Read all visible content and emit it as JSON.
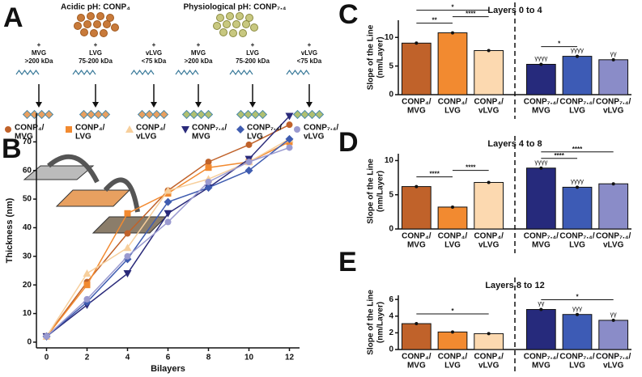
{
  "panel_labels": [
    "A",
    "B",
    "C",
    "D",
    "E"
  ],
  "diagram": {
    "groups": [
      "Acidic pH: CONP₄",
      "Physiological pH: CONP₇.₄"
    ],
    "additions": [
      [
        "+",
        "MVG",
        ">200 kDa"
      ],
      [
        "+",
        "LVG",
        "75-200 kDa"
      ],
      [
        "+",
        "vLVG",
        "<75 kDa"
      ],
      [
        "+",
        "MVG",
        ">200 kDa"
      ],
      [
        "+",
        "LVG",
        "75-200 kDa"
      ],
      [
        "+",
        "vLVG",
        "<75 kDa"
      ]
    ]
  },
  "chart_data": [
    {
      "type": "line",
      "xlabel": "Bilayers",
      "ylabel": "Thickness (nm)",
      "x": [
        0,
        2,
        4,
        6,
        8,
        10,
        12
      ],
      "xlim": [
        -0.5,
        12.5
      ],
      "xticks": [
        0,
        2,
        4,
        6,
        8,
        10,
        12
      ],
      "ylim": [
        -2,
        80
      ],
      "yticks": [
        0,
        10,
        20,
        30,
        40,
        50,
        60,
        70
      ],
      "series": [
        {
          "name": [
            "CONP₄/",
            "MVG"
          ],
          "color": "#c0622a",
          "marker": "circle",
          "values": [
            2,
            21,
            38,
            53,
            63,
            69,
            76
          ]
        },
        {
          "name": [
            "CONP₄/",
            "LVG"
          ],
          "color": "#f28a30",
          "marker": "square",
          "values": [
            2,
            20,
            45,
            52,
            61,
            63,
            70
          ]
        },
        {
          "name": [
            "CONP₄/",
            "vLVG"
          ],
          "color": "#f7cf9c",
          "marker": "triangle",
          "values": [
            2,
            24,
            33,
            53,
            57,
            63,
            71
          ]
        },
        {
          "name": [
            "CONP₇.₄/",
            "MVG"
          ],
          "color": "#2a2a7a",
          "marker": "triangle-down",
          "values": [
            2,
            13,
            24,
            45,
            54,
            64,
            79
          ]
        },
        {
          "name": [
            "CONP₇.₄/",
            "LVG"
          ],
          "color": "#3f5cb0",
          "marker": "diamond",
          "values": [
            2,
            14,
            29,
            49,
            54,
            60,
            71
          ]
        },
        {
          "name": [
            "CONP₇.₄/",
            "vLVG"
          ],
          "color": "#9a9ad0",
          "marker": "circle",
          "values": [
            2,
            15,
            30,
            42,
            56,
            63,
            68
          ]
        }
      ]
    },
    {
      "type": "bar",
      "title": "Layers 0 to 4",
      "ylabel": [
        "Slope of the Line",
        "(nm/Layer)"
      ],
      "categories": [
        [
          "CONP₄/",
          "MVG"
        ],
        [
          "CONP₄/",
          "LVG"
        ],
        [
          "CONP₄/",
          "vLVG"
        ],
        [
          "CONP₇.₄/",
          "MVG"
        ],
        [
          "CONP₇.₄/",
          "LVG"
        ],
        [
          "CONP₇.₄/",
          "vLVG"
        ]
      ],
      "values": [
        9.0,
        10.8,
        7.7,
        5.3,
        6.7,
        6.1
      ],
      "colors": [
        "#c0622a",
        "#f28a30",
        "#fcd9b0",
        "#262a7c",
        "#3d5bb5",
        "#8a8cc8"
      ],
      "ylim": [
        0,
        13
      ],
      "yticks": [
        0,
        5,
        10
      ],
      "bar_labels": [
        null,
        null,
        null,
        "γγγγ",
        "γγγγ",
        "γγ"
      ],
      "significance": [
        {
          "from": 0,
          "to": 1,
          "label": "**"
        },
        {
          "from": 1,
          "to": 2,
          "label": "****"
        },
        {
          "from": 0,
          "to": 2,
          "label": "*"
        },
        {
          "from": 3,
          "to": 4,
          "label": "*"
        }
      ]
    },
    {
      "type": "bar",
      "title": "Layers 4 to 8",
      "ylabel": [
        "Slope of the Line",
        "(nm/Layer)"
      ],
      "categories": [
        [
          "CONP₄/",
          "MVG"
        ],
        [
          "CONP₄/",
          "LVG"
        ],
        [
          "CONP₄/",
          "vLVG"
        ],
        [
          "CONP₇.₄/",
          "MVG"
        ],
        [
          "CONP₇.₄/",
          "LVG"
        ],
        [
          "CONP₇.₄/",
          "vLVG"
        ]
      ],
      "values": [
        6.2,
        3.2,
        6.8,
        8.9,
        6.1,
        6.6
      ],
      "colors": [
        "#c0622a",
        "#f28a30",
        "#fcd9b0",
        "#262a7c",
        "#3d5bb5",
        "#8a8cc8"
      ],
      "ylim": [
        0,
        11
      ],
      "yticks": [
        0,
        5,
        10
      ],
      "bar_labels": [
        null,
        null,
        null,
        "γγγγ",
        "γγγγ",
        null
      ],
      "significance": [
        {
          "from": 0,
          "to": 1,
          "label": "****"
        },
        {
          "from": 1,
          "to": 2,
          "label": "****"
        },
        {
          "from": 3,
          "to": 4,
          "label": "****"
        },
        {
          "from": 3,
          "to": 5,
          "label": "****"
        }
      ]
    },
    {
      "type": "bar",
      "title": "Layers 8 to 12",
      "ylabel": [
        "Slope of the Line",
        "(nm/Layer)"
      ],
      "categories": [
        [
          "CONP₄/",
          "MVG"
        ],
        [
          "CONP₄/",
          "LVG"
        ],
        [
          "CONP₄/",
          "vLVG"
        ],
        [
          "CONP₇.₄/",
          "MVG"
        ],
        [
          "CONP₇.₄/",
          "LVG"
        ],
        [
          "CONP₇.₄/",
          "vLVG"
        ]
      ],
      "values": [
        3.1,
        2.1,
        1.9,
        4.8,
        4.2,
        3.5
      ],
      "colors": [
        "#c0622a",
        "#f28a30",
        "#fcd9b0",
        "#262a7c",
        "#3d5bb5",
        "#8a8cc8"
      ],
      "ylim": [
        0,
        6.5
      ],
      "yticks": [
        0,
        2,
        4,
        6
      ],
      "bar_labels": [
        null,
        null,
        null,
        "γγ",
        "γγγ",
        "γγ"
      ],
      "significance": [
        {
          "from": 0,
          "to": 2,
          "label": "*"
        },
        {
          "from": 3,
          "to": 5,
          "label": "*"
        }
      ]
    }
  ]
}
